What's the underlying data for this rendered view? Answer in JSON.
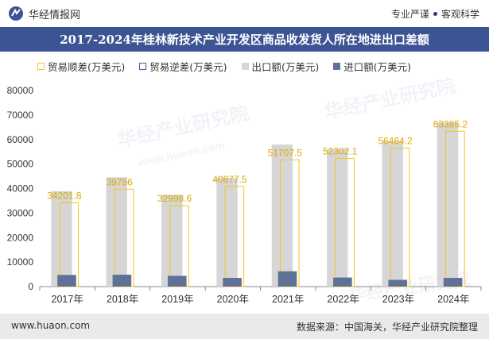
{
  "header": {
    "site_name": "华经情报网",
    "tagline_left": "专业严谨",
    "tagline_right": "客观科学"
  },
  "footer": {
    "url": "www.huaon.com",
    "source": "数据来源：中国海关，华经产业研究院整理"
  },
  "watermark": {
    "text_cn": "华经产业研究院",
    "text_url": "www.huaon.com"
  },
  "colors": {
    "title_bg": "#3c5493",
    "surplus": "#f5c518",
    "deficit": "#3f5a9a",
    "export": "#d6d6d6",
    "import": "#5f7196"
  },
  "chart_data": {
    "type": "bar",
    "title": "2017-2024年桂林新技术产业开发区商品收发货人所在地进出口差额",
    "categories": [
      "2017年",
      "2018年",
      "2019年",
      "2020年",
      "2021年",
      "2022年",
      "2023年",
      "2024年"
    ],
    "series": [
      {
        "name": "贸易顺差(万美元)",
        "kind": "outline",
        "values": [
          34201.8,
          39756,
          32998.6,
          40877.5,
          51707.5,
          52302.1,
          56464.2,
          63385.2
        ],
        "labels": [
          "34201.8",
          "39756",
          "32998.6",
          "40877.5",
          "51707.5",
          "52302.1",
          "56464.2",
          "63385.2"
        ]
      },
      {
        "name": "贸易逆差(万美元)",
        "kind": "outline",
        "values": [
          0,
          0,
          0,
          0,
          0,
          0,
          0,
          0
        ]
      },
      {
        "name": "出口额(万美元)",
        "kind": "fill",
        "values": [
          38950,
          44600,
          37400,
          44400,
          57950,
          56000,
          59200,
          66950
        ]
      },
      {
        "name": "进口额(万美元)",
        "kind": "fill",
        "values": [
          4750,
          4850,
          4400,
          3550,
          6250,
          3700,
          2750,
          3550
        ]
      }
    ],
    "ylim": [
      0,
      80000
    ],
    "yticks": [
      "0",
      "10000",
      "20000",
      "30000",
      "40000",
      "50000",
      "60000",
      "70000",
      "80000"
    ],
    "xlabel": "",
    "ylabel": ""
  }
}
